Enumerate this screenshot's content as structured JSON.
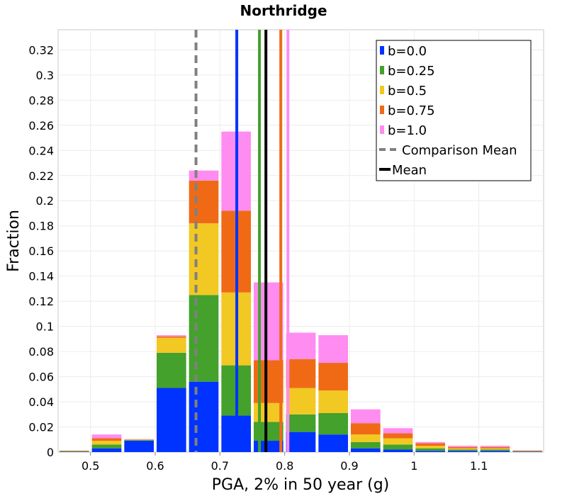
{
  "chart_data": {
    "type": "bar",
    "stacked": true,
    "title": "Northridge",
    "xlabel": "PGA, 2% in 50 year (g)",
    "ylabel": "Fraction",
    "xlim": [
      0.45,
      1.2
    ],
    "ylim": [
      0,
      0.336
    ],
    "x_ticks": [
      0.5,
      0.6,
      0.7,
      0.8,
      0.9,
      1.0,
      1.1
    ],
    "x_tick_labels": [
      "0.5",
      "0.6",
      "0.7",
      "0.8",
      "0.9",
      "1",
      "1.1"
    ],
    "y_ticks": [
      0,
      0.02,
      0.04,
      0.06,
      0.08,
      0.1,
      0.12,
      0.14,
      0.16,
      0.18,
      0.2,
      0.22,
      0.24,
      0.26,
      0.28,
      0.3,
      0.32
    ],
    "y_tick_labels": [
      "0",
      "0.02",
      "0.04",
      "0.06",
      "0.08",
      "0.1",
      "0.12",
      "0.14",
      "0.16",
      "0.18",
      "0.2",
      "0.22",
      "0.24",
      "0.26",
      "0.28",
      "0.3",
      "0.32"
    ],
    "bin_width": 0.05,
    "x": [
      0.475,
      0.525,
      0.575,
      0.625,
      0.675,
      0.725,
      0.775,
      0.825,
      0.875,
      0.925,
      0.975,
      1.025,
      1.075,
      1.125,
      1.175
    ],
    "series": [
      {
        "name": "b=0.0",
        "color": "#0033ff",
        "values": [
          0.0003,
          0.003,
          0.009,
          0.051,
          0.056,
          0.029,
          0.009,
          0.016,
          0.014,
          0.003,
          0.002,
          0.001,
          0.001,
          0.001,
          0.0003
        ]
      },
      {
        "name": "b=0.25",
        "color": "#44a12b",
        "values": [
          0.0003,
          0.003,
          0.0005,
          0.028,
          0.069,
          0.04,
          0.015,
          0.014,
          0.017,
          0.005,
          0.004,
          0.002,
          0.001,
          0.001,
          0.0003
        ]
      },
      {
        "name": "b=0.5",
        "color": "#f2c822",
        "values": [
          0.0003,
          0.003,
          0.0003,
          0.012,
          0.057,
          0.058,
          0.015,
          0.021,
          0.018,
          0.006,
          0.005,
          0.002,
          0.001,
          0.001,
          0.0003
        ]
      },
      {
        "name": "b=0.75",
        "color": "#f06a16",
        "values": [
          0.0003,
          0.002,
          0.0003,
          0.001,
          0.034,
          0.065,
          0.034,
          0.023,
          0.022,
          0.009,
          0.004,
          0.002,
          0.001,
          0.001,
          0.0003
        ]
      },
      {
        "name": "b=1.0",
        "color": "#ff8cf0",
        "values": [
          0.0001,
          0.003,
          0.0002,
          0.001,
          0.008,
          0.063,
          0.062,
          0.021,
          0.022,
          0.011,
          0.004,
          0.001,
          0.001,
          0.001,
          0.0003
        ]
      }
    ],
    "mean_lines": [
      {
        "name": "b=0.0",
        "color": "#0033ff",
        "x": 0.726
      },
      {
        "name": "b=0.25",
        "color": "#44a12b",
        "x": 0.761
      },
      {
        "name": "b=0.75",
        "color": "#f06a16",
        "x": 0.794
      },
      {
        "name": "b=1.0",
        "color": "#ff8cf0",
        "x": 0.805
      }
    ],
    "comparison_mean": {
      "label": "Comparison Mean",
      "x": 0.663,
      "color": "#808080",
      "style": "dashed"
    },
    "mean": {
      "label": "Mean",
      "x": 0.771,
      "color": "#000000",
      "style": "solid"
    },
    "legend": {
      "placement": "top-right",
      "entries": [
        {
          "label": "b=0.0",
          "color": "#0033ff",
          "kind": "box"
        },
        {
          "label": "b=0.25",
          "color": "#44a12b",
          "kind": "box"
        },
        {
          "label": "b=0.5",
          "color": "#f2c822",
          "kind": "box"
        },
        {
          "label": "b=0.75",
          "color": "#f06a16",
          "kind": "box"
        },
        {
          "label": "b=1.0",
          "color": "#ff8cf0",
          "kind": "box"
        },
        {
          "label": "Comparison Mean",
          "color": "#808080",
          "kind": "dash"
        },
        {
          "label": "Mean",
          "color": "#000000",
          "kind": "line"
        }
      ]
    },
    "grid": true
  }
}
